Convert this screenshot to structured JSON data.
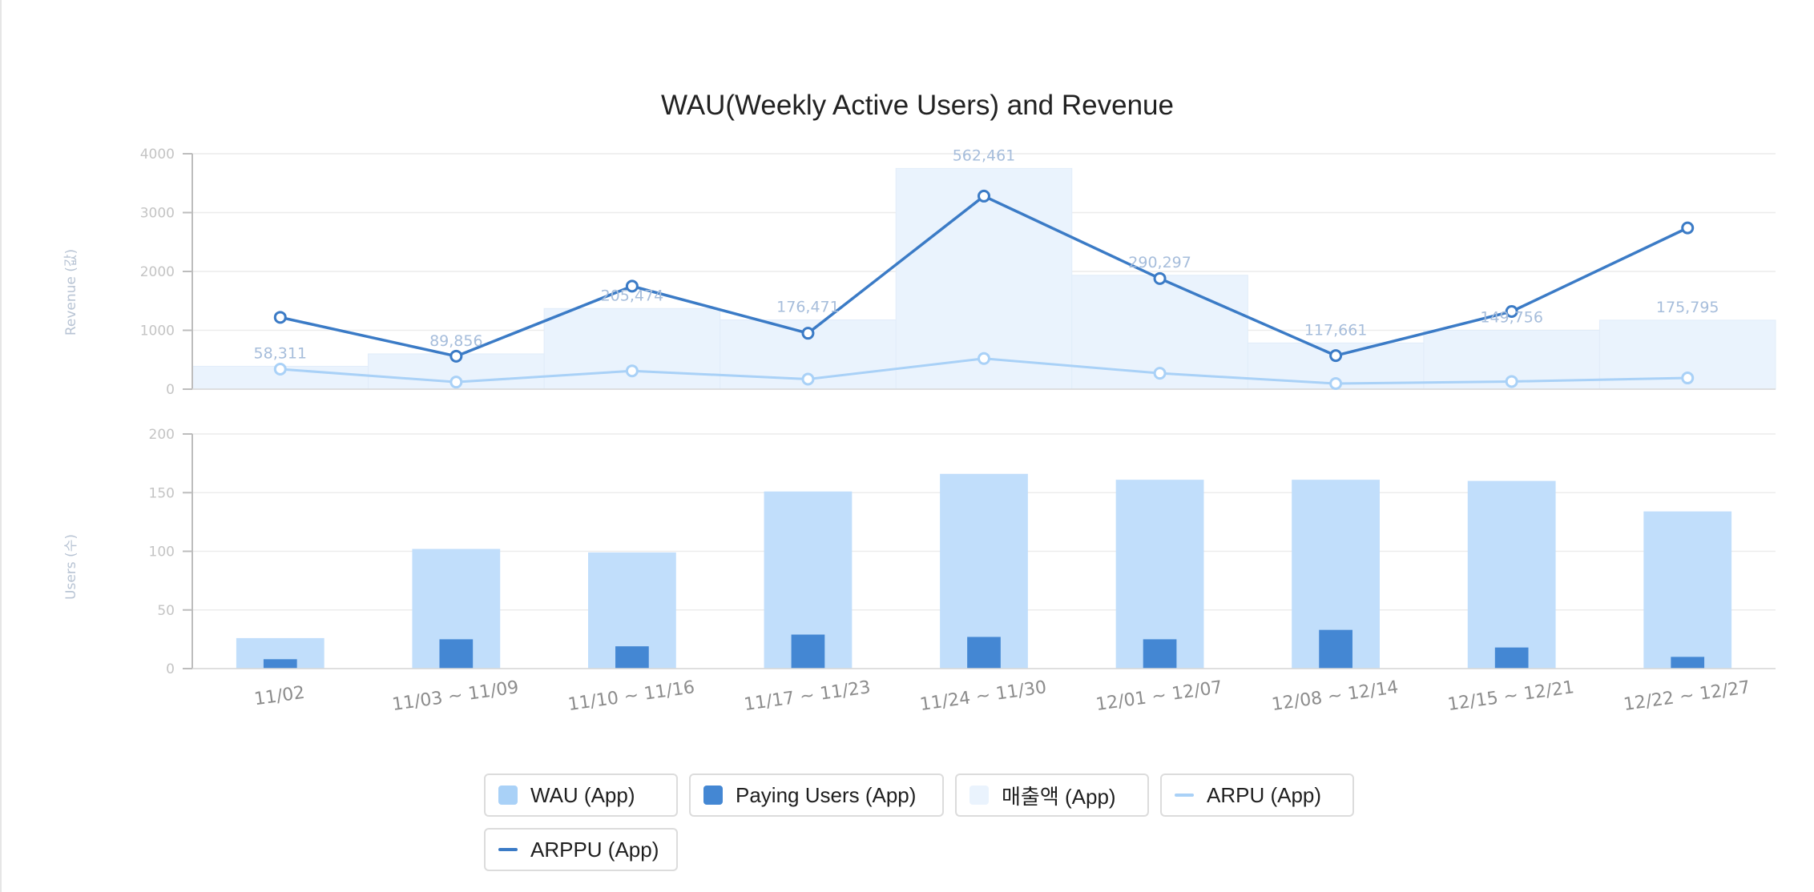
{
  "chart_data": {
    "title": "WAU(Weekly Active Users) and Revenue",
    "categories": [
      "11/02",
      "11/03 ~ 11/09",
      "11/10 ~ 11/16",
      "11/17 ~ 11/23",
      "11/24 ~ 11/30",
      "12/01 ~ 12/07",
      "12/08 ~ 12/14",
      "12/15 ~ 12/21",
      "12/22 ~ 12/27"
    ],
    "top_panel": {
      "type": "area+line",
      "ylabel": "Revenue (값)",
      "yticks": [
        "0",
        "1000",
        "2000",
        "3000",
        "4000"
      ],
      "ylim": [
        0,
        4000
      ],
      "revenue": {
        "name": "매출액 (App)",
        "values": [
          58311,
          89856,
          205474,
          176471,
          562461,
          290297,
          117661,
          149756,
          175795
        ],
        "labels": [
          "58,311",
          "89,856",
          "205,474",
          "176,471",
          "562,461",
          "290,297",
          "117,661",
          "149,756",
          "175,795"
        ],
        "max": 600000
      },
      "arpu": {
        "name": "ARPU (App)",
        "values": [
          340,
          120,
          310,
          170,
          520,
          270,
          95,
          130,
          190
        ]
      },
      "arppu": {
        "name": "ARPPU (App)",
        "values": [
          1220,
          560,
          1750,
          950,
          3280,
          1880,
          570,
          1320,
          2740
        ]
      }
    },
    "bottom_panel": {
      "type": "bar",
      "ylabel": "Users (수)",
      "yticks": [
        "0",
        "50",
        "100",
        "150",
        "200"
      ],
      "ylim": [
        0,
        200
      ],
      "series": [
        {
          "name": "WAU (App)",
          "values": [
            26,
            102,
            99,
            151,
            166,
            161,
            161,
            160,
            134
          ]
        },
        {
          "name": "Paying Users (App)",
          "values": [
            8,
            25,
            19,
            29,
            27,
            25,
            33,
            18,
            10
          ]
        }
      ]
    },
    "colors": {
      "wau": "#c1defb",
      "paying": "#4487d3",
      "revenue": "#eaf3fd",
      "arpu": "#a9d1f7",
      "arppu": "#3b7bc6",
      "grid": "#ececec",
      "tick_text": "#c4c4c4",
      "axis_title": "#b8c4d4",
      "data_label": "#a6bddb"
    },
    "legend": [
      {
        "label": "WAU (App)",
        "color": "#a9d1f7",
        "kind": "box"
      },
      {
        "label": "Paying Users (App)",
        "color": "#4487d3",
        "kind": "box"
      },
      {
        "label": "매출액 (App)",
        "color": "#eaf3fd",
        "kind": "box"
      },
      {
        "label": "ARPU (App)",
        "color": "#a9d1f7",
        "kind": "line"
      },
      {
        "label": "ARPPU (App)",
        "color": "#3b7bc6",
        "kind": "line"
      }
    ]
  }
}
